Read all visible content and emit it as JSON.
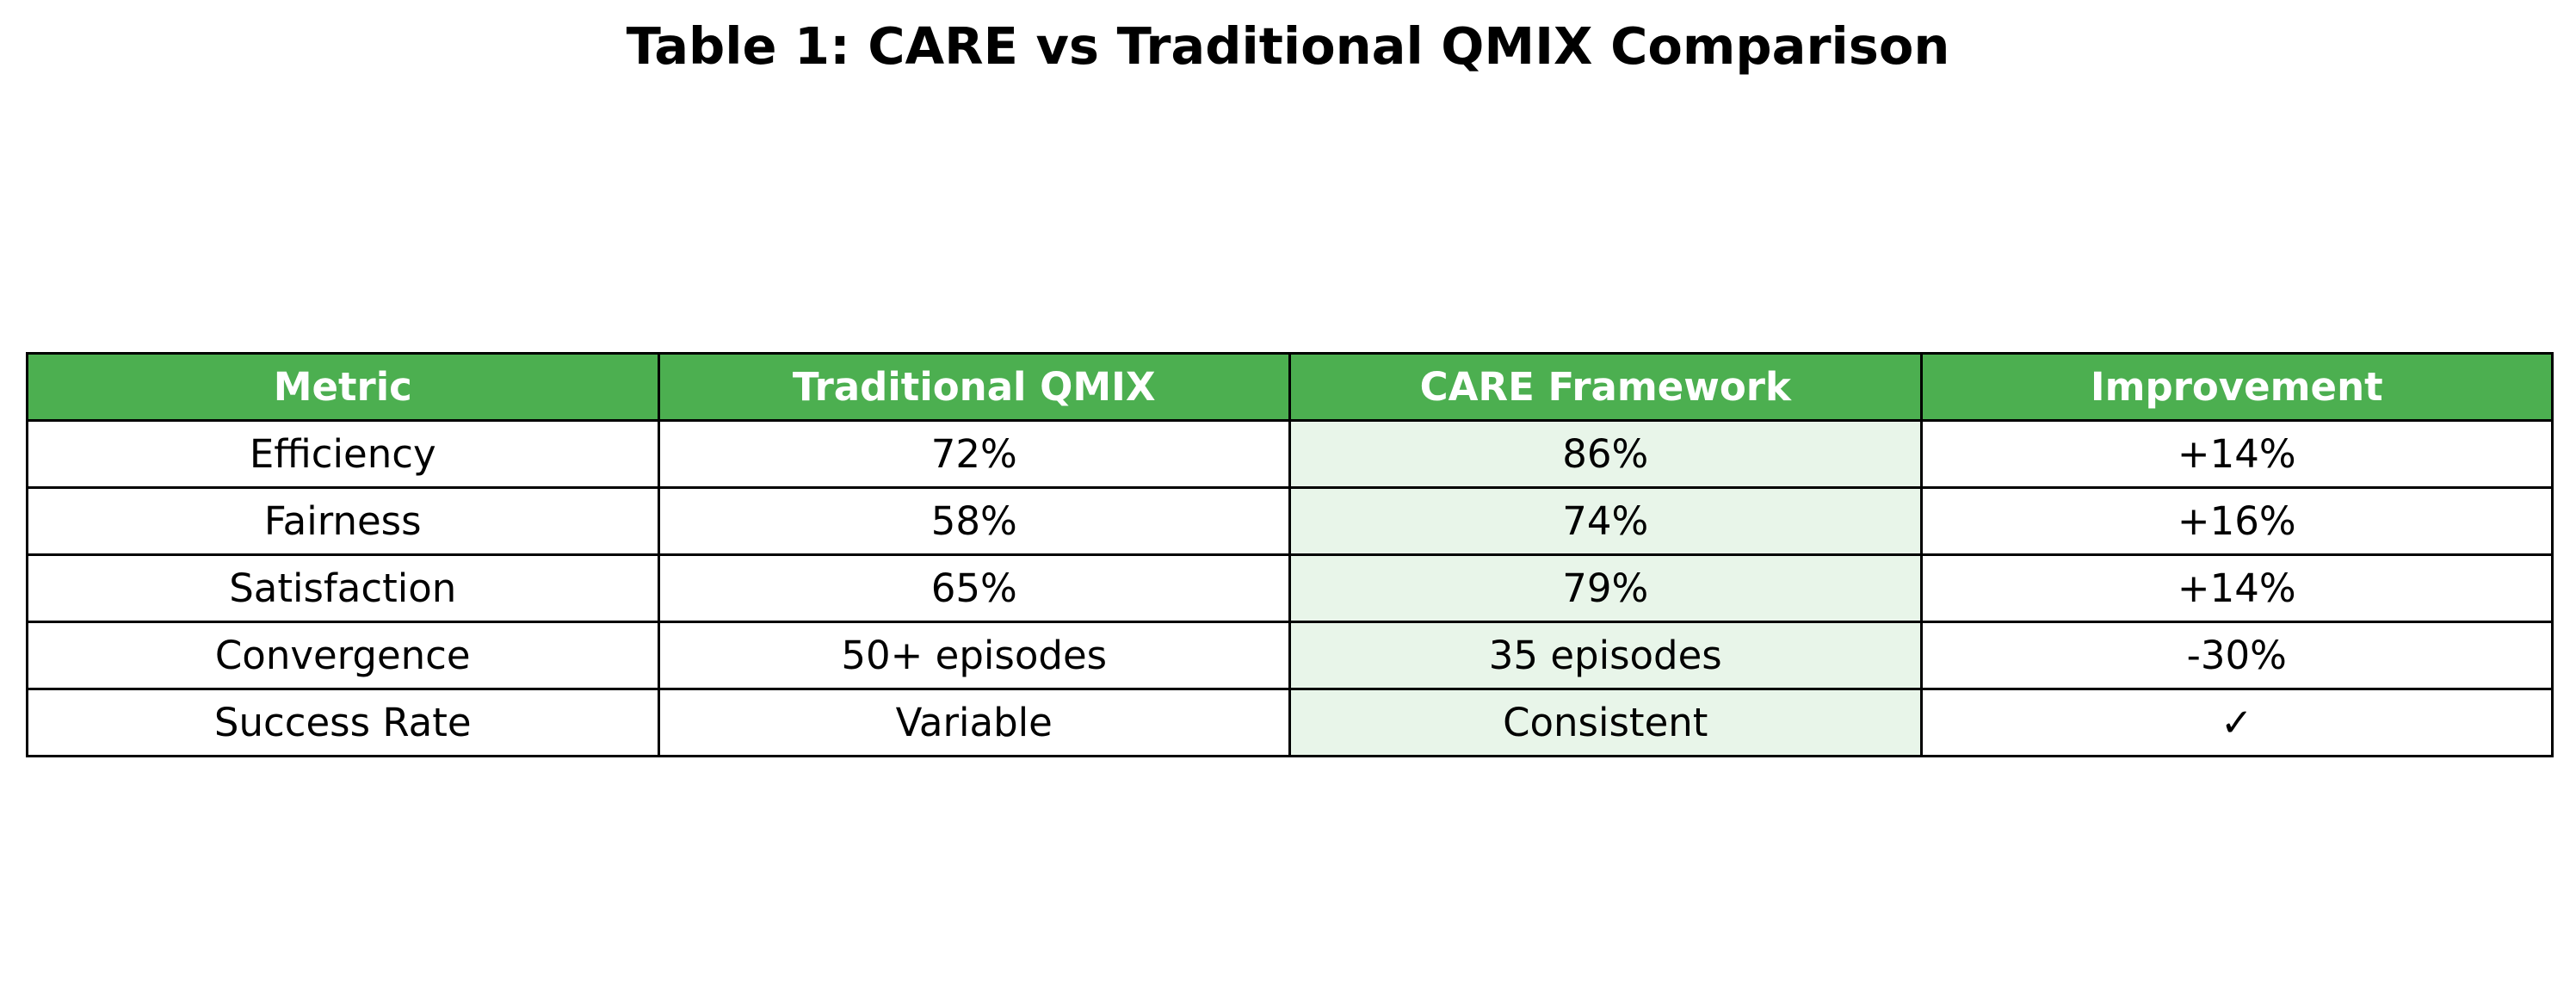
{
  "chart_data": {
    "type": "table",
    "title": "Table 1: CARE vs Traditional QMIX Comparison",
    "columns": [
      "Metric",
      "Traditional QMIX",
      "CARE Framework",
      "Improvement"
    ],
    "rows": [
      [
        "Efficiency",
        "72%",
        "86%",
        "+14%"
      ],
      [
        "Fairness",
        "58%",
        "74%",
        "+16%"
      ],
      [
        "Satisfaction",
        "65%",
        "79%",
        "+14%"
      ],
      [
        "Convergence",
        "50+ episodes",
        "35 episodes",
        "-30%"
      ],
      [
        "Success Rate",
        "Variable",
        "Consistent",
        "✓"
      ]
    ],
    "highlight_column": "CARE Framework",
    "colors": {
      "header_bg": "#4caf50",
      "header_text": "#ffffff",
      "highlight_bg": "#e8f5e9",
      "border": "#000000"
    }
  }
}
